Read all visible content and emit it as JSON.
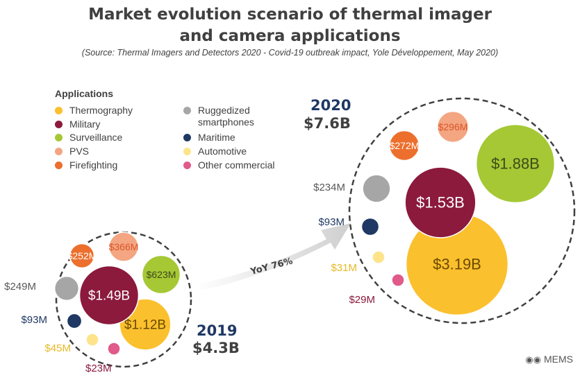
{
  "title_line1": "Market evolution scenario of thermal imager",
  "title_line2": "and camera applications",
  "source": "(Source: Thermal Imagers and Detectors 2020 - Covid-19 outbreak impact, Yole Développement, May 2020)",
  "legend": {
    "title": "Applications",
    "items": [
      {
        "label": "Thermography",
        "color": "#fbc02d"
      },
      {
        "label": "Military",
        "color": "#8b1a3d"
      },
      {
        "label": "Surveillance",
        "color": "#a5c834"
      },
      {
        "label": "PVS",
        "color": "#f4a582"
      },
      {
        "label": "Firefighting",
        "color": "#ec6f2d"
      },
      {
        "label": "Ruggedized smartphones",
        "color": "#a6a6a6"
      },
      {
        "label": "Maritime",
        "color": "#1f3864"
      },
      {
        "label": "Automotive",
        "color": "#fde48a"
      },
      {
        "label": "Other commercial",
        "color": "#e05a8a"
      }
    ]
  },
  "growth_label": "YoY 76%",
  "watermark": "MEMS",
  "chart_data": {
    "type": "bubble",
    "title": "Market evolution scenario of thermal imager and camera applications",
    "unit": "USD",
    "groups": [
      {
        "year": "2019",
        "total_label": "$4.3B",
        "total_musd": 4300,
        "segments": [
          {
            "category": "Thermography",
            "value_musd": 1120,
            "label": "$1.12B"
          },
          {
            "category": "Military",
            "value_musd": 1490,
            "label": "$1.49B"
          },
          {
            "category": "Surveillance",
            "value_musd": 623,
            "label": "$623M"
          },
          {
            "category": "PVS",
            "value_musd": 366,
            "label": "$366M"
          },
          {
            "category": "Firefighting",
            "value_musd": 252,
            "label": "$252M"
          },
          {
            "category": "Ruggedized smartphones",
            "value_musd": 249,
            "label": "$249M"
          },
          {
            "category": "Maritime",
            "value_musd": 93,
            "label": "$93M"
          },
          {
            "category": "Automotive",
            "value_musd": 45,
            "label": "$45M"
          },
          {
            "category": "Other commercial",
            "value_musd": 23,
            "label": "$23M"
          }
        ]
      },
      {
        "year": "2020",
        "total_label": "$7.6B",
        "total_musd": 7600,
        "segments": [
          {
            "category": "Thermography",
            "value_musd": 3190,
            "label": "$3.19B"
          },
          {
            "category": "Military",
            "value_musd": 1530,
            "label": "$1.53B"
          },
          {
            "category": "Surveillance",
            "value_musd": 1880,
            "label": "$1.88B"
          },
          {
            "category": "PVS",
            "value_musd": 296,
            "label": "$296M"
          },
          {
            "category": "Firefighting",
            "value_musd": 272,
            "label": "$272M"
          },
          {
            "category": "Ruggedized smartphones",
            "value_musd": 234,
            "label": "$234M"
          },
          {
            "category": "Maritime",
            "value_musd": 93,
            "label": "$93M"
          },
          {
            "category": "Automotive",
            "value_musd": 31,
            "label": "$31M"
          },
          {
            "category": "Other commercial",
            "value_musd": 29,
            "label": "$29M"
          }
        ]
      }
    ],
    "growth": "YoY 76%"
  }
}
